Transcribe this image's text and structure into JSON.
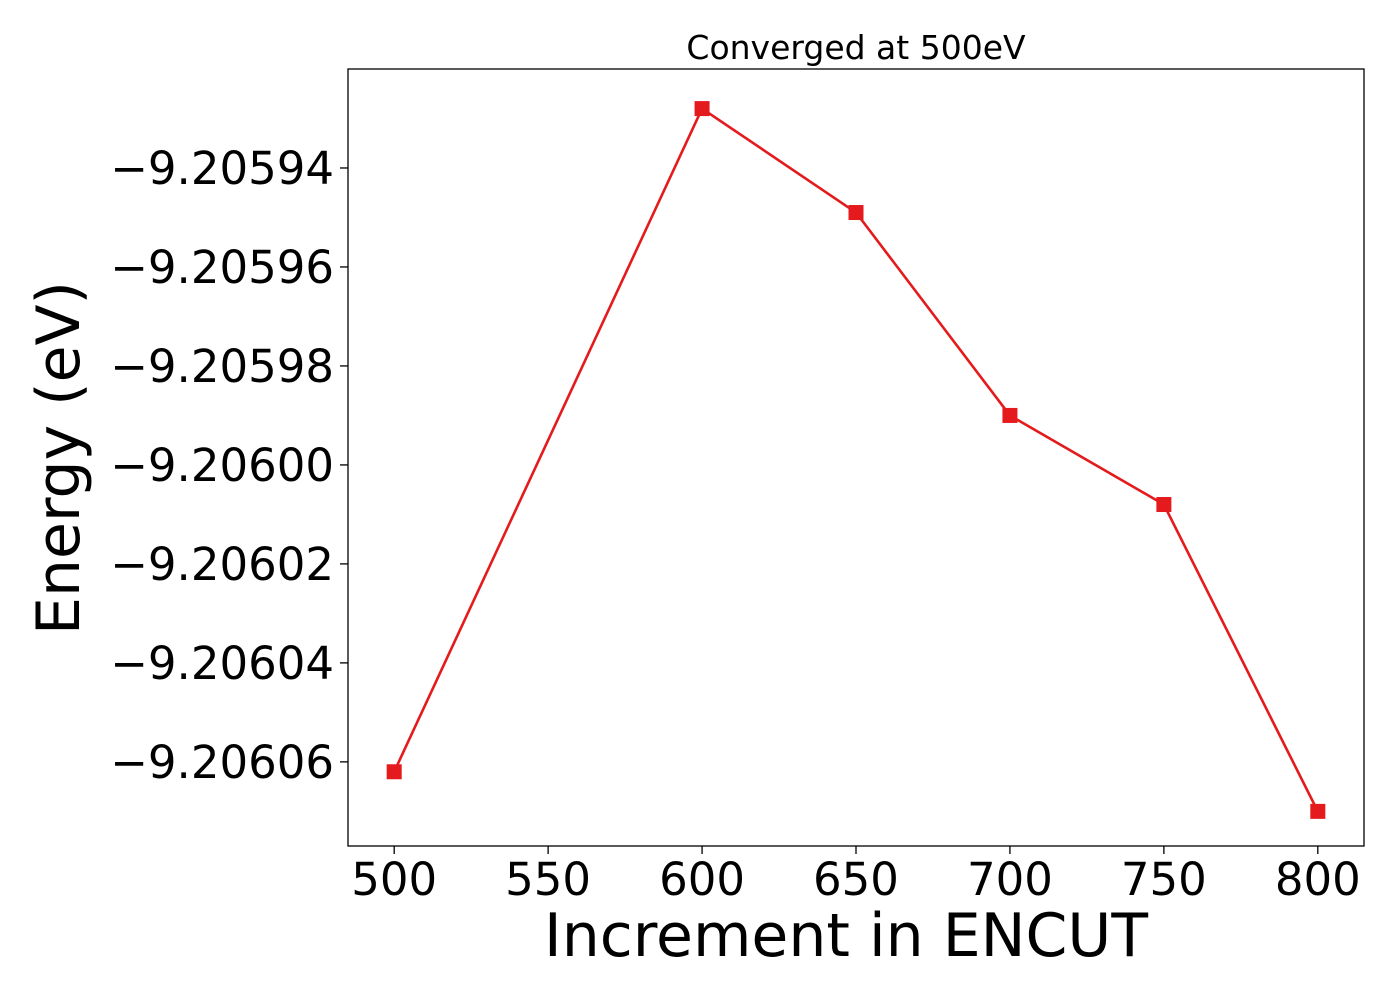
{
  "chart_data": {
    "type": "line",
    "title": "Converged at 500eV",
    "xlabel": "Increment in ENCUT",
    "ylabel": "Energy (eV)",
    "x": [
      500,
      600,
      650,
      700,
      750,
      800
    ],
    "series": [
      {
        "values": [
          -9.206062,
          -9.205928,
          -9.205949,
          -9.20599,
          -9.206008,
          -9.20607
        ],
        "color": "#e41a1c",
        "marker": "square"
      }
    ],
    "xlim": [
      485,
      815
    ],
    "ylim": [
      -9.206077,
      -9.20592
    ],
    "xticks": [
      500,
      550,
      600,
      650,
      700,
      750,
      800
    ],
    "xtick_labels": [
      "500",
      "550",
      "600",
      "650",
      "700",
      "750",
      "800"
    ],
    "yticks": [
      -9.20606,
      -9.20604,
      -9.20602,
      -9.206,
      -9.20598,
      -9.20596,
      -9.20594
    ],
    "ytick_labels": [
      "−9.20606",
      "−9.20604",
      "−9.20602",
      "−9.20600",
      "−9.20598",
      "−9.20596",
      "−9.20594"
    ],
    "grid": false,
    "legend": "none"
  }
}
